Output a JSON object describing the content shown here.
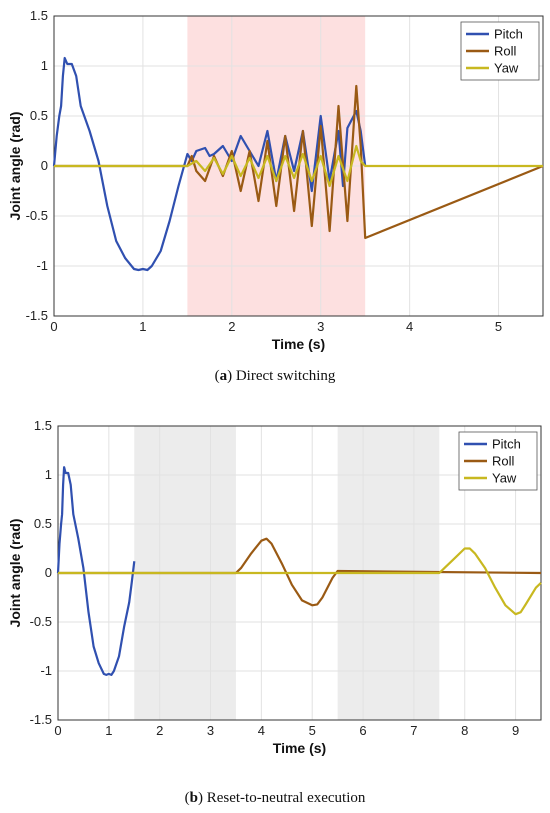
{
  "figure": {
    "caption_a_tag": "a",
    "caption_a_text": "Direct switching",
    "caption_b_tag": "b",
    "caption_b_text": "Reset-to-neutral execution"
  },
  "colors": {
    "pitch": "#3050b0",
    "roll": "#9a5a14",
    "yaw": "#c8b820",
    "shade_a": "#fde0e0",
    "shade_b": "#ececec"
  },
  "chart_data": [
    {
      "type": "line",
      "title": "",
      "xlabel": "Time (s)",
      "ylabel": "Joint angle (rad)",
      "xlim": [
        0,
        5.5
      ],
      "ylim": [
        -1.5,
        1.5
      ],
      "xticks": [
        0,
        1,
        2,
        3,
        4,
        5
      ],
      "yticks": [
        -1.5,
        -1,
        -0.5,
        0,
        0.5,
        1,
        1.5
      ],
      "xtick_labels": [
        "0",
        "1",
        "2",
        "3",
        "4",
        "5"
      ],
      "ytick_labels": [
        "-1.5",
        "-1",
        "-0.5",
        "0",
        "0.5",
        "1",
        "1.5"
      ],
      "grid": true,
      "legend": "top-right",
      "shaded_regions": [
        [
          1.5,
          3.5
        ]
      ],
      "series": [
        {
          "name": "Pitch",
          "x": [
            0,
            0.03,
            0.06,
            0.08,
            0.1,
            0.12,
            0.15,
            0.2,
            0.25,
            0.3,
            0.4,
            0.5,
            0.6,
            0.7,
            0.8,
            0.9,
            0.95,
            1.0,
            1.05,
            1.1,
            1.2,
            1.3,
            1.4,
            1.5,
            1.55,
            1.6,
            1.7,
            1.75,
            1.8,
            1.9,
            2.0,
            2.1,
            2.2,
            2.3,
            2.4,
            2.5,
            2.6,
            2.7,
            2.8,
            2.9,
            3.0,
            3.1,
            3.2,
            3.25,
            3.3,
            3.4,
            3.45,
            3.5
          ],
          "y": [
            0,
            0.3,
            0.5,
            0.6,
            0.9,
            1.08,
            1.02,
            1.02,
            0.9,
            0.6,
            0.35,
            0.05,
            -0.4,
            -0.75,
            -0.92,
            -1.03,
            -1.04,
            -1.03,
            -1.04,
            -1.0,
            -0.85,
            -0.55,
            -0.2,
            0.12,
            0.05,
            0.15,
            0.18,
            0.1,
            0.12,
            0.2,
            0.05,
            0.3,
            0.15,
            0.0,
            0.35,
            -0.15,
            0.3,
            -0.05,
            0.35,
            -0.25,
            0.5,
            -0.15,
            0.35,
            -0.2,
            0.38,
            0.55,
            0.35,
            0.0
          ]
        },
        {
          "name": "Roll",
          "x": [
            0,
            1.5,
            1.55,
            1.6,
            1.7,
            1.8,
            1.9,
            2.0,
            2.1,
            2.2,
            2.3,
            2.4,
            2.5,
            2.6,
            2.7,
            2.8,
            2.9,
            3.0,
            3.1,
            3.2,
            3.3,
            3.4,
            3.45,
            3.5,
            5.5
          ],
          "y": [
            0,
            0,
            0.1,
            -0.05,
            -0.15,
            0.1,
            -0.1,
            0.15,
            -0.25,
            0.15,
            -0.35,
            0.25,
            -0.4,
            0.3,
            -0.45,
            0.35,
            -0.6,
            0.4,
            -0.65,
            0.6,
            -0.55,
            0.8,
            0.2,
            -0.72,
            0
          ]
        },
        {
          "name": "Yaw",
          "x": [
            0,
            1.5,
            1.6,
            1.7,
            1.8,
            1.9,
            2.0,
            2.1,
            2.2,
            2.3,
            2.4,
            2.5,
            2.6,
            2.7,
            2.8,
            2.9,
            3.0,
            3.1,
            3.2,
            3.3,
            3.4,
            3.45,
            3.5,
            5.5
          ],
          "y": [
            0,
            0,
            0.05,
            -0.05,
            0.08,
            -0.08,
            0.1,
            -0.1,
            0.08,
            -0.12,
            0.1,
            -0.15,
            0.1,
            -0.12,
            0.12,
            -0.15,
            0.1,
            -0.2,
            0.1,
            -0.15,
            0.2,
            0.05,
            0,
            0
          ]
        }
      ]
    },
    {
      "type": "line",
      "title": "",
      "xlabel": "Time (s)",
      "ylabel": "Joint angle (rad)",
      "xlim": [
        0,
        9.5
      ],
      "ylim": [
        -1.5,
        1.5
      ],
      "xticks": [
        0,
        1,
        2,
        3,
        4,
        5,
        6,
        7,
        8,
        9
      ],
      "yticks": [
        -1.5,
        -1,
        -0.5,
        0,
        0.5,
        1,
        1.5
      ],
      "xtick_labels": [
        "0",
        "1",
        "2",
        "3",
        "4",
        "5",
        "6",
        "7",
        "8",
        "9"
      ],
      "ytick_labels": [
        "-1.5",
        "-1",
        "-0.5",
        "0",
        "0.5",
        "1",
        "1.5"
      ],
      "grid": true,
      "legend": "top-right",
      "shaded_regions": [
        [
          1.5,
          3.5
        ],
        [
          5.5,
          7.5
        ]
      ],
      "series": [
        {
          "name": "Pitch",
          "x": [
            0,
            0.03,
            0.06,
            0.08,
            0.1,
            0.12,
            0.15,
            0.2,
            0.25,
            0.3,
            0.4,
            0.5,
            0.6,
            0.7,
            0.8,
            0.9,
            0.95,
            1.0,
            1.05,
            1.1,
            1.2,
            1.3,
            1.4,
            1.45,
            1.5
          ],
          "y": [
            0,
            0.3,
            0.5,
            0.6,
            0.9,
            1.08,
            1.02,
            1.02,
            0.9,
            0.6,
            0.35,
            0.05,
            -0.4,
            -0.75,
            -0.92,
            -1.03,
            -1.04,
            -1.03,
            -1.04,
            -1.0,
            -0.85,
            -0.55,
            -0.3,
            -0.1,
            0.12
          ]
        },
        {
          "name": "Roll",
          "x": [
            0,
            3.5,
            3.6,
            3.8,
            4.0,
            4.1,
            4.2,
            4.4,
            4.6,
            4.8,
            5.0,
            5.1,
            5.2,
            5.4,
            5.5,
            9.5
          ],
          "y": [
            0,
            0,
            0.05,
            0.2,
            0.33,
            0.35,
            0.3,
            0.1,
            -0.12,
            -0.28,
            -0.33,
            -0.32,
            -0.25,
            -0.05,
            0.02,
            0
          ]
        },
        {
          "name": "Yaw",
          "x": [
            0,
            7.5,
            7.6,
            7.8,
            8.0,
            8.1,
            8.2,
            8.4,
            8.6,
            8.8,
            9.0,
            9.1,
            9.2,
            9.4,
            9.5
          ],
          "y": [
            0,
            0,
            0.05,
            0.15,
            0.25,
            0.25,
            0.2,
            0.05,
            -0.15,
            -0.33,
            -0.42,
            -0.4,
            -0.32,
            -0.15,
            -0.1
          ]
        }
      ]
    }
  ]
}
